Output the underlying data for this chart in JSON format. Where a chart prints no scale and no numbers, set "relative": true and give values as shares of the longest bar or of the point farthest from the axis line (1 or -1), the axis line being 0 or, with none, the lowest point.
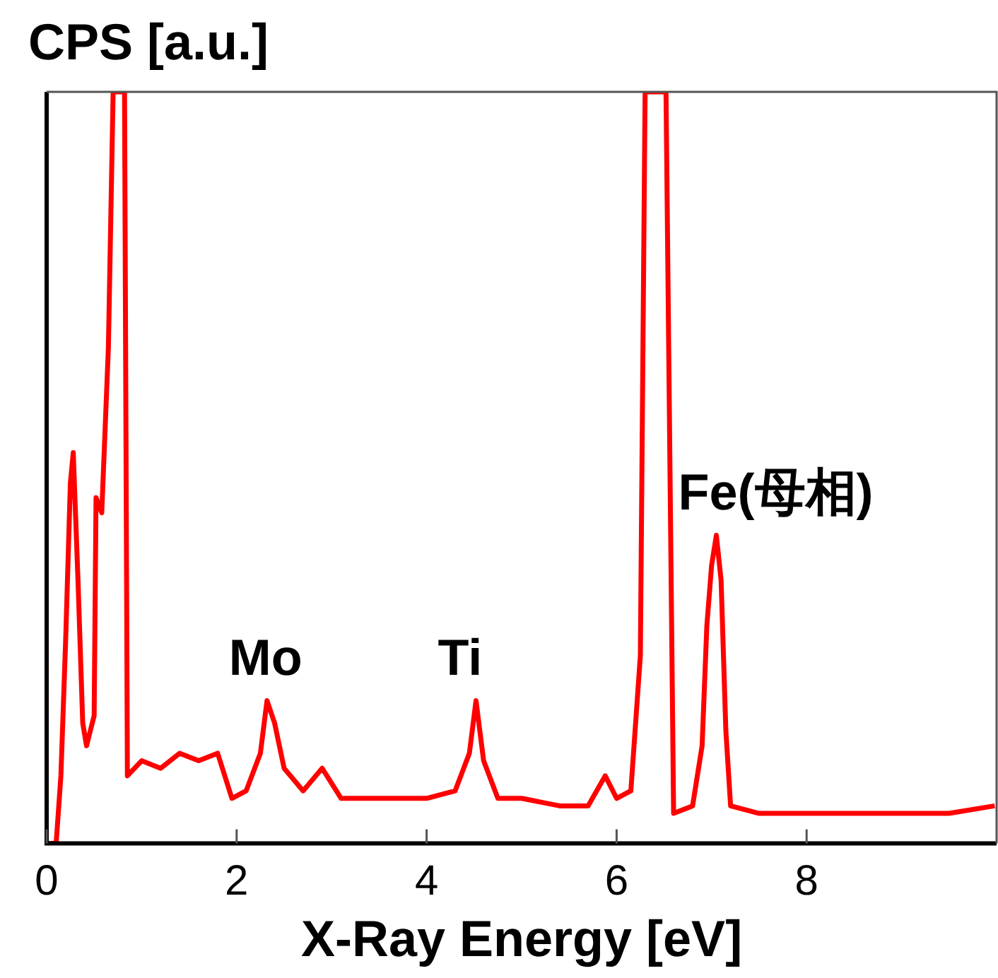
{
  "chart_data": {
    "type": "line",
    "ylabel": "CPS [a.u.]",
    "xlabel": "X-Ray Energy [eV]",
    "relative": true,
    "xlim": [
      0,
      10
    ],
    "xticks": [
      0,
      2,
      4,
      6,
      8
    ],
    "grid": false,
    "legend": false,
    "marker": "none",
    "line_style": "solid",
    "x": [
      0,
      0.1,
      0.15,
      0.2,
      0.25,
      0.28,
      0.33,
      0.38,
      0.42,
      0.5,
      0.52,
      0.58,
      0.65,
      0.7,
      0.75,
      0.82,
      0.85,
      1.0,
      1.2,
      1.4,
      1.6,
      1.8,
      1.95,
      2.1,
      2.25,
      2.32,
      2.4,
      2.5,
      2.7,
      2.9,
      3.1,
      3.4,
      3.7,
      4.0,
      4.3,
      4.45,
      4.52,
      4.6,
      4.75,
      5.0,
      5.4,
      5.7,
      5.88,
      6.0,
      6.15,
      6.25,
      6.3,
      6.45,
      6.52,
      6.6,
      6.8,
      6.9,
      6.95,
      7.0,
      7.05,
      7.1,
      7.15,
      7.2,
      7.5,
      8.0,
      8.5,
      9.0,
      9.5,
      9.98
    ],
    "series": [
      {
        "color": "#ff0000",
        "values": [
          0,
          0,
          0.09,
          0.27,
          0.48,
          0.52,
          0.35,
          0.16,
          0.13,
          0.17,
          0.46,
          0.44,
          0.66,
          1,
          1,
          1,
          0.09,
          0.11,
          0.1,
          0.12,
          0.11,
          0.12,
          0.06,
          0.07,
          0.12,
          0.19,
          0.16,
          0.1,
          0.07,
          0.1,
          0.06,
          0.06,
          0.06,
          0.06,
          0.07,
          0.12,
          0.19,
          0.11,
          0.06,
          0.06,
          0.05,
          0.05,
          0.09,
          0.06,
          0.07,
          0.25,
          1,
          1,
          1,
          0.04,
          0.05,
          0.13,
          0.29,
          0.37,
          0.41,
          0.35,
          0.15,
          0.05,
          0.04,
          0.04,
          0.04,
          0.04,
          0.04,
          0.05
        ]
      }
    ],
    "annotations": [
      {
        "text": "Mo",
        "x": 2.32,
        "y": 0.19
      },
      {
        "text": "Ti",
        "x": 4.52,
        "y": 0.19
      },
      {
        "text": "Fe(母相)",
        "x": 7.05,
        "y": 0.41
      }
    ]
  }
}
